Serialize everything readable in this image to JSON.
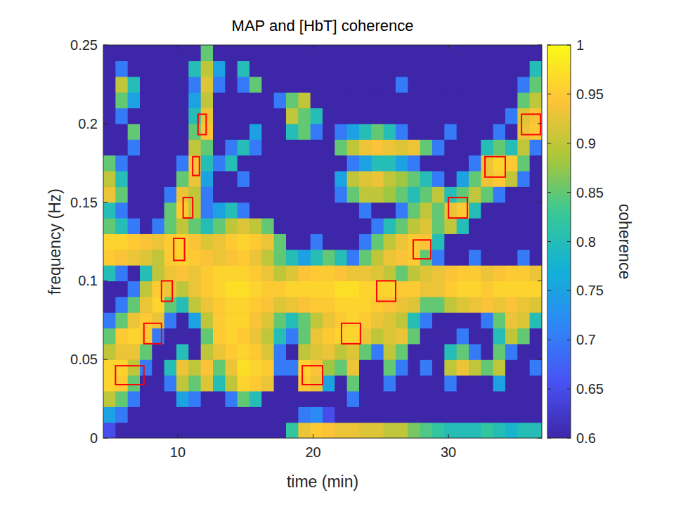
{
  "chart_data": {
    "type": "heatmap",
    "title": "MAP and [HbT] coherence",
    "x_label": "time (min)",
    "y_label": "frequency (Hz)",
    "xlim": [
      4.5,
      36.9
    ],
    "xticks": [
      10,
      20,
      30
    ],
    "ylim": [
      0,
      0.25
    ],
    "yticks": [
      0,
      0.05,
      0.1,
      0.15,
      0.2,
      0.25
    ],
    "time_edges": [
      4.5,
      5.4,
      6.3,
      7.2,
      8.1,
      9,
      9.9,
      10.8,
      11.7,
      12.6,
      13.5,
      14.4,
      15.3,
      16.2,
      17.1,
      18,
      18.9,
      19.8,
      20.7,
      21.6,
      22.5,
      23.4,
      24.3,
      25.2,
      26.1,
      27,
      27.9,
      28.8,
      29.7,
      30.6,
      31.5,
      32.4,
      33.3,
      34.2,
      35.1,
      36,
      36.9
    ],
    "frequency_edges": [
      0,
      0.01,
      0.02,
      0.03,
      0.04,
      0.05,
      0.06,
      0.07,
      0.08,
      0.09,
      0.1,
      0.11,
      0.12,
      0.13,
      0.14,
      0.15,
      0.16,
      0.17,
      0.18,
      0.19,
      0.2,
      0.21,
      0.22,
      0.23,
      0.24,
      0.25
    ],
    "coherence": [
      [
        0.65,
        0.6,
        0.6,
        0.6,
        0.6,
        0.6,
        0.6,
        0.6,
        0.6,
        0.6,
        0.6,
        0.6,
        0.6,
        0.6,
        0.6,
        0.82,
        0.93,
        0.95,
        0.94,
        0.93,
        0.93,
        0.92,
        0.92,
        0.9,
        0.9,
        0.86,
        0.84,
        0.82,
        0.8,
        0.8,
        0.8,
        0.82,
        0.8,
        0.78,
        0.8,
        0.8
      ],
      [
        0.75,
        0.7,
        0.6,
        0.6,
        0.6,
        0.6,
        0.6,
        0.6,
        0.6,
        0.6,
        0.6,
        0.6,
        0.6,
        0.6,
        0.6,
        0.6,
        0.7,
        0.72,
        0.65,
        0.6,
        0.6,
        0.6,
        0.6,
        0.6,
        0.6,
        0.6,
        0.6,
        0.6,
        0.6,
        0.6,
        0.6,
        0.6,
        0.6,
        0.6,
        0.6,
        0.6
      ],
      [
        0.9,
        0.85,
        0.7,
        0.6,
        0.6,
        0.6,
        0.75,
        0.7,
        0.6,
        0.6,
        0.7,
        0.85,
        0.8,
        0.6,
        0.6,
        0.6,
        0.6,
        0.6,
        0.6,
        0.6,
        0.7,
        0.6,
        0.6,
        0.6,
        0.6,
        0.6,
        0.6,
        0.6,
        0.6,
        0.6,
        0.6,
        0.6,
        0.6,
        0.6,
        0.6,
        0.6
      ],
      [
        0.96,
        0.95,
        0.85,
        0.6,
        0.6,
        0.7,
        0.9,
        0.85,
        0.92,
        0.8,
        0.9,
        0.96,
        0.95,
        0.93,
        0.6,
        0.6,
        0.95,
        0.93,
        0.75,
        0.6,
        0.85,
        0.6,
        0.6,
        0.7,
        0.6,
        0.6,
        0.6,
        0.6,
        0.7,
        0.6,
        0.6,
        0.6,
        0.75,
        0.6,
        0.6,
        0.6
      ],
      [
        0.96,
        0.96,
        0.9,
        0.7,
        0.6,
        0.8,
        0.93,
        0.9,
        0.94,
        0.85,
        0.93,
        0.97,
        0.96,
        0.95,
        0.7,
        0.7,
        0.96,
        0.94,
        0.88,
        0.85,
        0.93,
        0.6,
        0.6,
        0.85,
        0.7,
        0.6,
        0.7,
        0.6,
        0.9,
        0.93,
        0.9,
        0.85,
        0.9,
        0.6,
        0.6,
        0.7
      ],
      [
        0.9,
        0.93,
        0.93,
        0.85,
        0.6,
        0.6,
        0.8,
        0.6,
        0.9,
        0.93,
        0.95,
        0.96,
        0.95,
        0.92,
        0.7,
        0.6,
        0.9,
        0.92,
        0.93,
        0.9,
        0.92,
        0.85,
        0.7,
        0.9,
        0.85,
        0.6,
        0.6,
        0.6,
        0.8,
        0.85,
        0.7,
        0.6,
        0.85,
        0.7,
        0.6,
        0.6
      ],
      [
        0.85,
        0.95,
        0.96,
        0.95,
        0.7,
        0.6,
        0.6,
        0.6,
        0.85,
        0.95,
        0.96,
        0.95,
        0.93,
        0.9,
        0.8,
        0.7,
        0.85,
        0.93,
        0.95,
        0.96,
        0.96,
        0.93,
        0.9,
        0.92,
        0.93,
        0.85,
        0.6,
        0.6,
        0.6,
        0.7,
        0.6,
        0.6,
        0.8,
        0.9,
        0.85,
        0.6
      ],
      [
        0.7,
        0.85,
        0.93,
        0.95,
        0.93,
        0.7,
        0.6,
        0.75,
        0.9,
        0.95,
        0.96,
        0.96,
        0.94,
        0.92,
        0.85,
        0.8,
        0.85,
        0.9,
        0.93,
        0.95,
        0.96,
        0.95,
        0.93,
        0.92,
        0.9,
        0.8,
        0.7,
        0.6,
        0.6,
        0.6,
        0.6,
        0.7,
        0.85,
        0.93,
        0.92,
        0.8
      ],
      [
        0.6,
        0.7,
        0.85,
        0.93,
        0.96,
        0.85,
        0.8,
        0.9,
        0.93,
        0.95,
        0.96,
        0.96,
        0.95,
        0.94,
        0.92,
        0.93,
        0.94,
        0.95,
        0.95,
        0.96,
        0.96,
        0.96,
        0.95,
        0.94,
        0.93,
        0.92,
        0.85,
        0.85,
        0.9,
        0.92,
        0.93,
        0.94,
        0.93,
        0.94,
        0.93,
        0.92
      ],
      [
        0.6,
        0.6,
        0.7,
        0.9,
        0.95,
        0.93,
        0.9,
        0.93,
        0.95,
        0.96,
        0.97,
        0.97,
        0.96,
        0.95,
        0.95,
        0.96,
        0.96,
        0.96,
        0.96,
        0.97,
        0.97,
        0.96,
        0.96,
        0.96,
        0.95,
        0.95,
        0.93,
        0.93,
        0.95,
        0.96,
        0.96,
        0.95,
        0.96,
        0.96,
        0.96,
        0.96
      ],
      [
        0.8,
        0.7,
        0.6,
        0.8,
        0.9,
        0.93,
        0.94,
        0.93,
        0.95,
        0.96,
        0.96,
        0.96,
        0.95,
        0.93,
        0.9,
        0.92,
        0.94,
        0.95,
        0.95,
        0.94,
        0.93,
        0.93,
        0.92,
        0.9,
        0.85,
        0.9,
        0.92,
        0.93,
        0.94,
        0.95,
        0.95,
        0.93,
        0.94,
        0.95,
        0.95,
        0.93
      ],
      [
        0.95,
        0.94,
        0.93,
        0.92,
        0.9,
        0.95,
        0.96,
        0.95,
        0.94,
        0.93,
        0.94,
        0.95,
        0.93,
        0.9,
        0.85,
        0.8,
        0.75,
        0.8,
        0.85,
        0.8,
        0.7,
        0.85,
        0.9,
        0.93,
        0.94,
        0.95,
        0.85,
        0.7,
        0.6,
        0.6,
        0.7,
        0.6,
        0.6,
        0.6,
        0.7,
        0.6
      ],
      [
        0.96,
        0.96,
        0.95,
        0.94,
        0.93,
        0.95,
        0.96,
        0.94,
        0.92,
        0.93,
        0.95,
        0.96,
        0.95,
        0.93,
        0.85,
        0.6,
        0.6,
        0.7,
        0.6,
        0.6,
        0.6,
        0.7,
        0.85,
        0.9,
        0.93,
        0.95,
        0.94,
        0.8,
        0.6,
        0.6,
        0.6,
        0.6,
        0.6,
        0.6,
        0.6,
        0.6
      ],
      [
        0.85,
        0.8,
        0.7,
        0.6,
        0.7,
        0.85,
        0.9,
        0.85,
        0.8,
        0.85,
        0.9,
        0.92,
        0.9,
        0.85,
        0.6,
        0.6,
        0.6,
        0.6,
        0.6,
        0.6,
        0.6,
        0.6,
        0.7,
        0.8,
        0.85,
        0.9,
        0.92,
        0.85,
        0.9,
        0.8,
        0.6,
        0.6,
        0.6,
        0.6,
        0.6,
        0.6
      ],
      [
        0.8,
        0.7,
        0.6,
        0.6,
        0.6,
        0.85,
        0.95,
        0.9,
        0.7,
        0.75,
        0.8,
        0.7,
        0.6,
        0.6,
        0.6,
        0.6,
        0.6,
        0.6,
        0.6,
        0.6,
        0.6,
        0.7,
        0.6,
        0.6,
        0.7,
        0.85,
        0.9,
        0.85,
        0.93,
        0.95,
        0.8,
        0.6,
        0.6,
        0.6,
        0.6,
        0.6
      ],
      [
        0.93,
        0.85,
        0.6,
        0.6,
        0.6,
        0.7,
        0.93,
        0.9,
        0.7,
        0.6,
        0.6,
        0.6,
        0.6,
        0.6,
        0.6,
        0.6,
        0.6,
        0.6,
        0.6,
        0.7,
        0.85,
        0.9,
        0.9,
        0.88,
        0.85,
        0.8,
        0.85,
        0.9,
        0.8,
        0.85,
        0.9,
        0.85,
        0.7,
        0.6,
        0.6,
        0.6
      ],
      [
        0.9,
        0.8,
        0.6,
        0.6,
        0.6,
        0.6,
        0.85,
        0.93,
        0.75,
        0.6,
        0.6,
        0.7,
        0.6,
        0.6,
        0.6,
        0.6,
        0.6,
        0.6,
        0.6,
        0.75,
        0.9,
        0.92,
        0.93,
        0.9,
        0.88,
        0.85,
        0.8,
        0.7,
        0.6,
        0.75,
        0.85,
        0.93,
        0.95,
        0.9,
        0.7,
        0.6
      ],
      [
        0.85,
        0.7,
        0.6,
        0.6,
        0.6,
        0.6,
        0.7,
        0.94,
        0.8,
        0.7,
        0.8,
        0.6,
        0.6,
        0.6,
        0.6,
        0.6,
        0.6,
        0.6,
        0.6,
        0.6,
        0.7,
        0.75,
        0.8,
        0.8,
        0.75,
        0.7,
        0.6,
        0.6,
        0.6,
        0.6,
        0.7,
        0.93,
        0.96,
        0.95,
        0.85,
        0.6
      ],
      [
        0.6,
        0.6,
        0.7,
        0.6,
        0.6,
        0.6,
        0.6,
        0.9,
        0.85,
        0.6,
        0.7,
        0.8,
        0.7,
        0.6,
        0.6,
        0.6,
        0.6,
        0.6,
        0.6,
        0.85,
        0.9,
        0.93,
        0.94,
        0.93,
        0.92,
        0.93,
        0.85,
        0.7,
        0.6,
        0.6,
        0.6,
        0.8,
        0.85,
        0.8,
        0.9,
        0.7
      ],
      [
        0.6,
        0.6,
        0.85,
        0.6,
        0.6,
        0.6,
        0.6,
        0.85,
        0.94,
        0.6,
        0.6,
        0.6,
        0.75,
        0.6,
        0.6,
        0.8,
        0.85,
        0.7,
        0.6,
        0.7,
        0.75,
        0.8,
        0.85,
        0.8,
        0.7,
        0.6,
        0.6,
        0.6,
        0.7,
        0.6,
        0.6,
        0.6,
        0.7,
        0.6,
        0.93,
        0.95
      ],
      [
        0.6,
        0.7,
        0.6,
        0.6,
        0.6,
        0.6,
        0.6,
        0.8,
        0.93,
        0.6,
        0.6,
        0.6,
        0.6,
        0.6,
        0.6,
        0.9,
        0.85,
        0.8,
        0.6,
        0.6,
        0.6,
        0.6,
        0.6,
        0.6,
        0.6,
        0.6,
        0.6,
        0.6,
        0.6,
        0.6,
        0.6,
        0.6,
        0.6,
        0.7,
        0.92,
        0.94
      ],
      [
        0.6,
        0.85,
        0.75,
        0.6,
        0.6,
        0.6,
        0.6,
        0.75,
        0.9,
        0.6,
        0.6,
        0.6,
        0.6,
        0.6,
        0.7,
        0.85,
        0.9,
        0.6,
        0.6,
        0.6,
        0.6,
        0.6,
        0.6,
        0.6,
        0.6,
        0.6,
        0.6,
        0.6,
        0.6,
        0.6,
        0.6,
        0.6,
        0.6,
        0.6,
        0.85,
        0.9
      ],
      [
        0.6,
        0.9,
        0.8,
        0.6,
        0.6,
        0.6,
        0.6,
        0.7,
        0.92,
        0.7,
        0.6,
        0.7,
        0.85,
        0.6,
        0.6,
        0.6,
        0.6,
        0.6,
        0.6,
        0.6,
        0.6,
        0.6,
        0.6,
        0.6,
        0.7,
        0.6,
        0.6,
        0.6,
        0.6,
        0.6,
        0.6,
        0.6,
        0.6,
        0.6,
        0.7,
        0.85
      ],
      [
        0.6,
        0.7,
        0.6,
        0.6,
        0.6,
        0.6,
        0.6,
        0.8,
        0.9,
        0.75,
        0.6,
        0.8,
        0.6,
        0.6,
        0.6,
        0.6,
        0.6,
        0.6,
        0.6,
        0.6,
        0.6,
        0.6,
        0.6,
        0.6,
        0.6,
        0.6,
        0.6,
        0.6,
        0.6,
        0.6,
        0.6,
        0.6,
        0.6,
        0.6,
        0.6,
        0.8
      ],
      [
        0.6,
        0.6,
        0.6,
        0.6,
        0.6,
        0.6,
        0.6,
        0.6,
        0.85,
        0.6,
        0.6,
        0.6,
        0.6,
        0.6,
        0.6,
        0.6,
        0.6,
        0.6,
        0.6,
        0.6,
        0.6,
        0.6,
        0.6,
        0.6,
        0.6,
        0.6,
        0.6,
        0.6,
        0.6,
        0.6,
        0.6,
        0.6,
        0.6,
        0.6,
        0.6,
        0.6
      ]
    ],
    "colorbar": {
      "label": "coherence",
      "lim": [
        0.6,
        1
      ],
      "ticks": [
        0.6,
        0.65,
        0.7,
        0.75,
        0.8,
        0.85,
        0.9,
        0.95,
        1
      ]
    },
    "boxes": {
      "color": "#ff0000",
      "regions": [
        {
          "time": [
            5.4,
            7.5
          ],
          "frequency": [
            0.034,
            0.046
          ]
        },
        {
          "time": [
            7.5,
            8.8
          ],
          "frequency": [
            0.06,
            0.073
          ]
        },
        {
          "time": [
            8.8,
            9.6
          ],
          "frequency": [
            0.087,
            0.1
          ]
        },
        {
          "time": [
            9.7,
            10.5
          ],
          "frequency": [
            0.113,
            0.127
          ]
        },
        {
          "time": [
            10.4,
            11.1
          ],
          "frequency": [
            0.14,
            0.153
          ]
        },
        {
          "time": [
            11.1,
            11.6
          ],
          "frequency": [
            0.167,
            0.179
          ]
        },
        {
          "time": [
            11.5,
            12.1
          ],
          "frequency": [
            0.193,
            0.206
          ]
        },
        {
          "time": [
            19.2,
            20.7
          ],
          "frequency": [
            0.034,
            0.046
          ]
        },
        {
          "time": [
            22.1,
            23.5
          ],
          "frequency": [
            0.06,
            0.073
          ]
        },
        {
          "time": [
            24.7,
            26.1
          ],
          "frequency": [
            0.087,
            0.1
          ]
        },
        {
          "time": [
            27.4,
            28.7
          ],
          "frequency": [
            0.114,
            0.126
          ]
        },
        {
          "time": [
            30,
            31.4
          ],
          "frequency": [
            0.14,
            0.153
          ]
        },
        {
          "time": [
            32.7,
            34.2
          ],
          "frequency": [
            0.166,
            0.179
          ]
        },
        {
          "time": [
            35.4,
            36.8
          ],
          "frequency": [
            0.193,
            0.206
          ]
        }
      ]
    }
  }
}
